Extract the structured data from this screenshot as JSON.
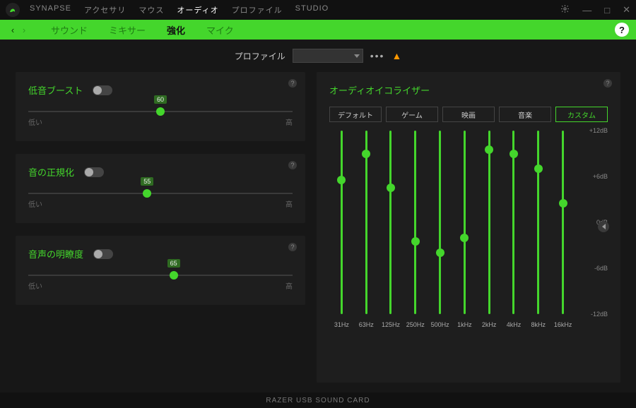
{
  "colors": {
    "accent": "#44d62c",
    "bg": "#171717",
    "panel": "#1e1e1e",
    "text_muted": "#888"
  },
  "topnav": {
    "items": [
      {
        "label": "SYNAPSE",
        "active": false
      },
      {
        "label": "アクセサリ",
        "active": false
      },
      {
        "label": "マウス",
        "active": false
      },
      {
        "label": "オーディオ",
        "active": true
      },
      {
        "label": "プロファイル",
        "active": false
      },
      {
        "label": "STUDIO",
        "active": false
      }
    ]
  },
  "subnav": {
    "items": [
      {
        "label": "サウンド",
        "active": false
      },
      {
        "label": "ミキサー",
        "active": false
      },
      {
        "label": "強化",
        "active": true
      },
      {
        "label": "マイク",
        "active": false
      }
    ],
    "help_label": "?"
  },
  "profile": {
    "label": "プロファイル",
    "more": "•••",
    "warn": "▲"
  },
  "sliders": [
    {
      "title": "低音ブースト",
      "value": 60,
      "low": "低い",
      "high": "高",
      "percent": 50
    },
    {
      "title": "音の正規化",
      "value": 55,
      "low": "低い",
      "high": "高",
      "percent": 45
    },
    {
      "title": "音声の明瞭度",
      "value": 65,
      "low": "低い",
      "high": "高",
      "percent": 55
    }
  ],
  "equalizer": {
    "title": "オーディオイコライザー",
    "presets": [
      {
        "label": "デフォルト",
        "active": false
      },
      {
        "label": "ゲーム",
        "active": false
      },
      {
        "label": "映画",
        "active": false
      },
      {
        "label": "音楽",
        "active": false
      },
      {
        "label": "カスタム",
        "active": true
      }
    ],
    "chart": {
      "type": "equalizer",
      "track_color": "#44d62c",
      "thumb_color": "#44d62c",
      "ylim": [
        -12,
        12
      ],
      "scale": [
        {
          "value": 12,
          "label": "+12dB"
        },
        {
          "value": 6,
          "label": "+6dB"
        },
        {
          "value": 0,
          "label": "0dB"
        },
        {
          "value": -6,
          "label": "-6dB"
        },
        {
          "value": -12,
          "label": "-12dB"
        }
      ],
      "bands": [
        {
          "freq": "31Hz",
          "value": 5.5
        },
        {
          "freq": "63Hz",
          "value": 9.0
        },
        {
          "freq": "125Hz",
          "value": 4.5
        },
        {
          "freq": "250Hz",
          "value": -2.5
        },
        {
          "freq": "500Hz",
          "value": -4.0
        },
        {
          "freq": "1kHz",
          "value": -2.0
        },
        {
          "freq": "2kHz",
          "value": 9.5
        },
        {
          "freq": "4kHz",
          "value": 9.0
        },
        {
          "freq": "8kHz",
          "value": 7.0
        },
        {
          "freq": "16kHz",
          "value": 2.5
        }
      ]
    }
  },
  "footer": {
    "device": "RAZER USB SOUND CARD"
  }
}
